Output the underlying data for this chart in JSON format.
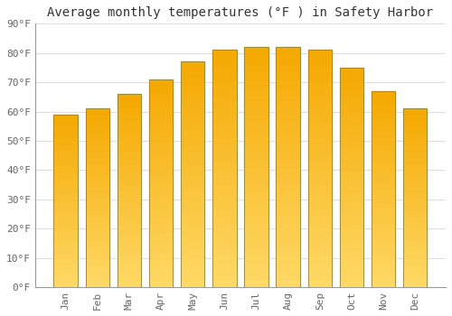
{
  "title": "Average monthly temperatures (°F ) in Safety Harbor",
  "months": [
    "Jan",
    "Feb",
    "Mar",
    "Apr",
    "May",
    "Jun",
    "Jul",
    "Aug",
    "Sep",
    "Oct",
    "Nov",
    "Dec"
  ],
  "values": [
    59,
    61,
    66,
    71,
    77,
    81,
    82,
    82,
    81,
    75,
    67,
    61
  ],
  "bar_color_top": "#F5A800",
  "bar_color_bottom": "#FFD966",
  "bar_edge_color": "#888844",
  "background_color": "#FFFFFF",
  "plot_bg_color": "#FFFFFF",
  "grid_color": "#DDDDDD",
  "ylim": [
    0,
    90
  ],
  "yticks": [
    0,
    10,
    20,
    30,
    40,
    50,
    60,
    70,
    80,
    90
  ],
  "ytick_labels": [
    "0°F",
    "10°F",
    "20°F",
    "30°F",
    "40°F",
    "50°F",
    "60°F",
    "70°F",
    "80°F",
    "90°F"
  ],
  "title_fontsize": 10,
  "tick_fontsize": 8,
  "tick_color": "#666666",
  "font_family": "monospace",
  "bar_width": 0.75
}
